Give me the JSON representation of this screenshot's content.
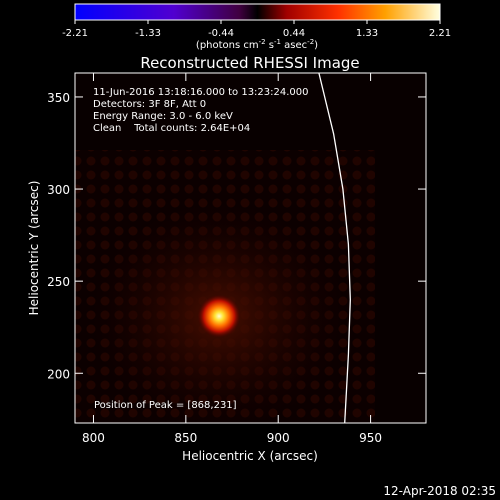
{
  "chart_data": {
    "type": "heatmap",
    "title": "Reconstructed RHESSI Image",
    "xlabel": "Heliocentric X (arcsec)",
    "ylabel": "Heliocentric Y (arcsec)",
    "xlim": [
      790,
      980
    ],
    "ylim": [
      173,
      363
    ],
    "xticks": [
      800,
      850,
      900,
      950
    ],
    "yticks": [
      200,
      250,
      300,
      350
    ],
    "colorbar": {
      "ticks": [
        "-2.21",
        "-1.33",
        "-0.44",
        "0.44",
        "1.33",
        "2.21"
      ],
      "range": [
        -2.21,
        2.21
      ],
      "units_main": "(photons cm",
      "units_exp1": "-2",
      "units_mid": " s",
      "units_exp2": "-1",
      "units_end": " asec",
      "units_exp3": "-2",
      "units_close": ")"
    },
    "annotations": [
      "11-Jun-2016 13:18:16.000 to 13:23:24.000",
      "Detectors: 3F 8F, Att 0",
      "Energy Range: 3.0 - 6.0 keV",
      "Clean    Total counts: 2.64E+04"
    ],
    "peak_label": "Position of Peak = [868,231]",
    "peak": [
      868,
      231
    ],
    "peak_value": 2.21,
    "limb_curve": [
      [
        922,
        363
      ],
      [
        930,
        330
      ],
      [
        935,
        300
      ],
      [
        938,
        270
      ],
      [
        939,
        240
      ],
      [
        938,
        210
      ],
      [
        936,
        173
      ]
    ],
    "grid": false
  },
  "footer": {
    "timestamp": "12-Apr-2018 02:35"
  }
}
